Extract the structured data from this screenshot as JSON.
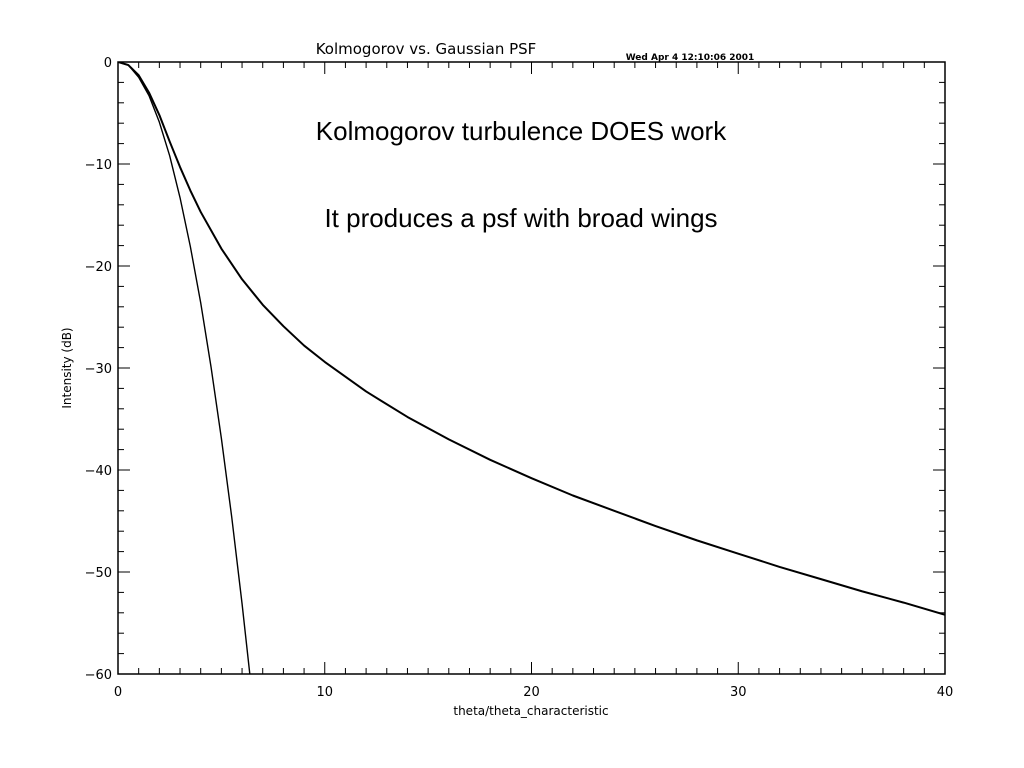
{
  "chart_data": {
    "type": "line",
    "title": "Kolmogorov vs. Gaussian PSF",
    "timestamp": "Wed Apr  4 12:10:06 2001",
    "xlabel": "theta/theta_characteristic",
    "ylabel": "Intensity (dB)",
    "xlim": [
      0,
      40
    ],
    "ylim": [
      -60,
      0
    ],
    "x_ticks": [
      "0",
      "10",
      "20",
      "30",
      "40"
    ],
    "y_ticks": [
      "0",
      "−10",
      "−20",
      "−30",
      "−40",
      "−50",
      "−60"
    ],
    "grid": false,
    "legend": "none",
    "annotations": [
      "Kolmogorov turbulence DOES work",
      "It produces a psf with broad wings"
    ],
    "series": [
      {
        "x": [
          0,
          0.5,
          1,
          1.5,
          2,
          2.5,
          3,
          3.5,
          4,
          5,
          6,
          7,
          8,
          9,
          10,
          12,
          14,
          16,
          18,
          20,
          22,
          24,
          26,
          28,
          30,
          32,
          34,
          36,
          38,
          40
        ],
        "y": [
          0,
          -0.3,
          -1.3,
          -3.0,
          -5.2,
          -7.8,
          -10.3,
          -12.6,
          -14.7,
          -18.3,
          -21.3,
          -23.8,
          -25.9,
          -27.8,
          -29.4,
          -32.3,
          -34.8,
          -37.0,
          -39.0,
          -40.8,
          -42.5,
          -44.0,
          -45.5,
          -46.9,
          -48.2,
          -49.5,
          -50.7,
          -51.9,
          -53.0,
          -54.2
        ]
      },
      {
        "x": [
          0,
          0.5,
          1,
          1.5,
          2,
          2.5,
          3,
          3.5,
          4,
          4.5,
          5,
          5.5,
          6,
          6.5,
          6.6
        ],
        "y": [
          0,
          -0.3,
          -1.5,
          -3.3,
          -5.9,
          -9.2,
          -13.3,
          -18.1,
          -23.6,
          -29.9,
          -36.9,
          -44.6,
          -53.1,
          -62.3,
          -64.2
        ]
      }
    ]
  }
}
